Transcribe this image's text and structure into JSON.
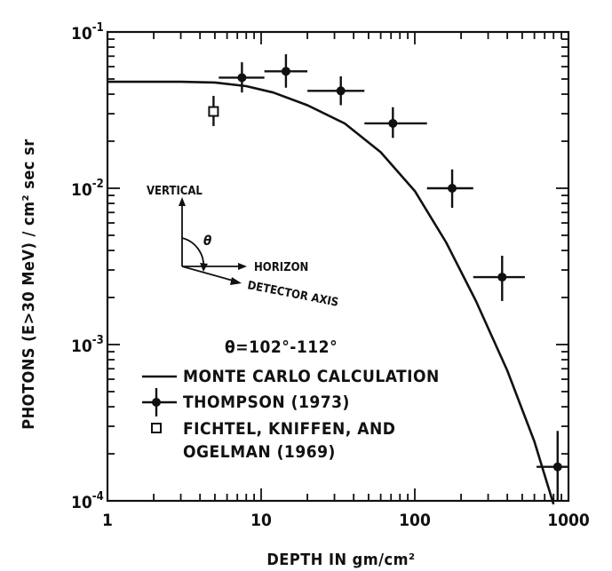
{
  "chart_data": {
    "type": "scatter",
    "xscale": "log",
    "yscale": "log",
    "xlim": [
      1,
      1000
    ],
    "ylim": [
      0.0001,
      0.1
    ],
    "xlabel": "DEPTH IN gm/cm²",
    "ylabel": "PHOTONS (E>30 MeV) / cm² sec sr",
    "x_ticks": [
      {
        "value": 1,
        "label": "1"
      },
      {
        "value": 10,
        "label": "10"
      },
      {
        "value": 100,
        "label": "100"
      },
      {
        "value": 1000,
        "label": "1000"
      }
    ],
    "y_ticks": [
      {
        "value": 0.1,
        "base": "10",
        "exp": "-1"
      },
      {
        "value": 0.01,
        "base": "10",
        "exp": "-2"
      },
      {
        "value": 0.001,
        "base": "10",
        "exp": "-3"
      },
      {
        "value": 0.0001,
        "base": "10",
        "exp": "-4"
      }
    ],
    "series": [
      {
        "name": "MONTE CARLO CALCULATION",
        "kind": "line",
        "x": [
          1,
          3,
          5,
          8,
          12,
          20,
          35,
          60,
          100,
          160,
          250,
          400,
          600,
          800
        ],
        "y": [
          0.048,
          0.048,
          0.0475,
          0.045,
          0.041,
          0.034,
          0.026,
          0.017,
          0.0096,
          0.0045,
          0.0019,
          0.00068,
          0.00024,
          9.5e-05
        ]
      },
      {
        "name": "THOMPSON (1973)",
        "kind": "points_with_errors",
        "points": [
          {
            "x": 7.5,
            "y": 0.051,
            "xlo": 5.3,
            "xhi": 10.5,
            "ylo": 0.041,
            "yhi": 0.064
          },
          {
            "x": 14.5,
            "y": 0.056,
            "xlo": 10.5,
            "xhi": 20,
            "ylo": 0.044,
            "yhi": 0.072
          },
          {
            "x": 33,
            "y": 0.042,
            "xlo": 20,
            "xhi": 47,
            "ylo": 0.034,
            "yhi": 0.052
          },
          {
            "x": 72,
            "y": 0.026,
            "xlo": 47,
            "xhi": 120,
            "ylo": 0.021,
            "yhi": 0.033
          },
          {
            "x": 175,
            "y": 0.01,
            "xlo": 120,
            "xhi": 240,
            "ylo": 0.0075,
            "yhi": 0.0132
          },
          {
            "x": 370,
            "y": 0.0027,
            "xlo": 240,
            "xhi": 520,
            "ylo": 0.0019,
            "yhi": 0.0037
          },
          {
            "x": 850,
            "y": 0.000165,
            "xlo": 620,
            "xhi": 1000,
            "ylo": 0.0001,
            "yhi": 0.00028
          }
        ]
      },
      {
        "name": "FICHTEL, KNIFFEN, AND OGELMAN (1969)",
        "kind": "open_square",
        "points": [
          {
            "x": 4.9,
            "y": 0.031,
            "ylo": 0.025,
            "yhi": 0.039
          }
        ]
      }
    ],
    "angle_label": "θ=102°-112°",
    "inset": {
      "vertical": "VERTICAL",
      "horizon": "HORIZON",
      "detector_axis": "DETECTOR AXIS",
      "theta": "θ"
    },
    "legend": [
      {
        "symbol": "line",
        "text": "MONTE CARLO CALCULATION"
      },
      {
        "symbol": "cross",
        "text": "THOMPSON (1973)"
      },
      {
        "symbol": "square",
        "text": "FICHTEL, KNIFFEN, AND"
      },
      {
        "symbol": "none",
        "text": "OGELMAN (1969)"
      }
    ],
    "legend_position": "lower-left",
    "grid": false
  }
}
